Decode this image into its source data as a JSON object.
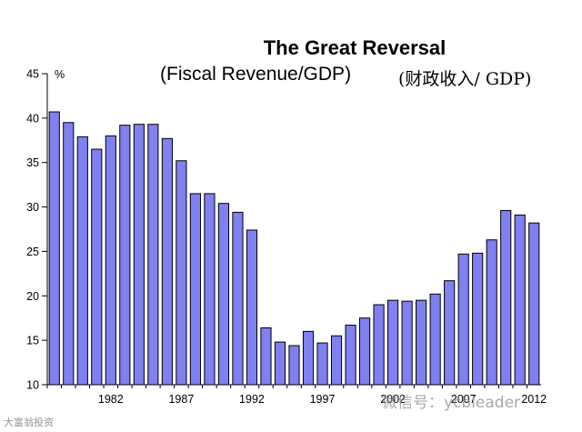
{
  "chart_data": {
    "type": "bar",
    "title": "The Great Reversal",
    "subtitle": "(Fiscal Revenue/GDP)",
    "subtitle_cn": "(财政收入/ GDP)",
    "ylabel": "%",
    "xlabel": "",
    "ylim": [
      10,
      45
    ],
    "yticks": [
      10,
      15,
      20,
      25,
      30,
      35,
      40,
      45
    ],
    "x_start": 1978,
    "x_end": 2015,
    "x_tick_labels": [
      "1982",
      "1987",
      "1992",
      "1997",
      "2002",
      "2007",
      "2012"
    ],
    "x_tick_years": [
      1982,
      1987,
      1992,
      1997,
      2002,
      2007,
      2012
    ],
    "values": [
      40.7,
      39.5,
      37.9,
      36.5,
      38.0,
      39.2,
      39.3,
      39.3,
      37.7,
      35.2,
      31.5,
      31.5,
      30.4,
      29.4,
      27.4,
      16.4,
      14.8,
      14.4,
      16.0,
      14.7,
      15.5,
      16.7,
      17.5,
      19.0,
      19.5,
      19.4,
      19.5,
      20.2,
      21.7,
      24.7,
      24.8,
      26.3,
      29.6,
      29.1,
      28.2
    ],
    "bar_color": "#8080f0",
    "bar_edge_color": "#000000",
    "grid": false,
    "legend": "none"
  },
  "watermarks": {
    "right": "微信号：ycbleader",
    "left": "大富翁投资"
  }
}
